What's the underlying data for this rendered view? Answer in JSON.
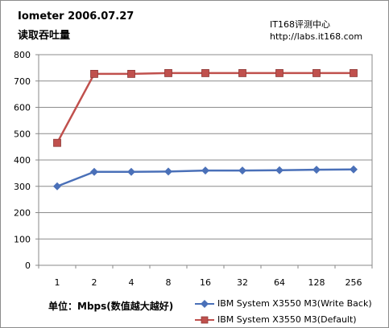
{
  "page": {
    "brand": "IT168评测中心",
    "url": "http://labs.it168.com",
    "unit_label": "单位：Mbps(数值越大越好)"
  },
  "chart_data": {
    "type": "line",
    "title": "Iometer  2006.07.27",
    "subtitle": "读取吞吐量",
    "xlabel": "",
    "ylabel": "",
    "categories": [
      "1",
      "2",
      "4",
      "8",
      "16",
      "32",
      "64",
      "128",
      "256"
    ],
    "ylim": [
      0,
      800
    ],
    "yticks": [
      0,
      100,
      200,
      300,
      400,
      500,
      600,
      700,
      800
    ],
    "grid": true,
    "legend_position": "bottom-right",
    "series": [
      {
        "name": "IBM System X3550 M3(Write Back)",
        "color": "#4a70b8",
        "marker": "diamond",
        "values": [
          300,
          355,
          355,
          356,
          360,
          360,
          361,
          363,
          364
        ]
      },
      {
        "name": "IBM System X3550 M3(Default)",
        "color": "#c0504d",
        "marker": "square",
        "values": [
          465,
          727,
          727,
          730,
          730,
          730,
          730,
          730,
          730
        ]
      }
    ]
  }
}
